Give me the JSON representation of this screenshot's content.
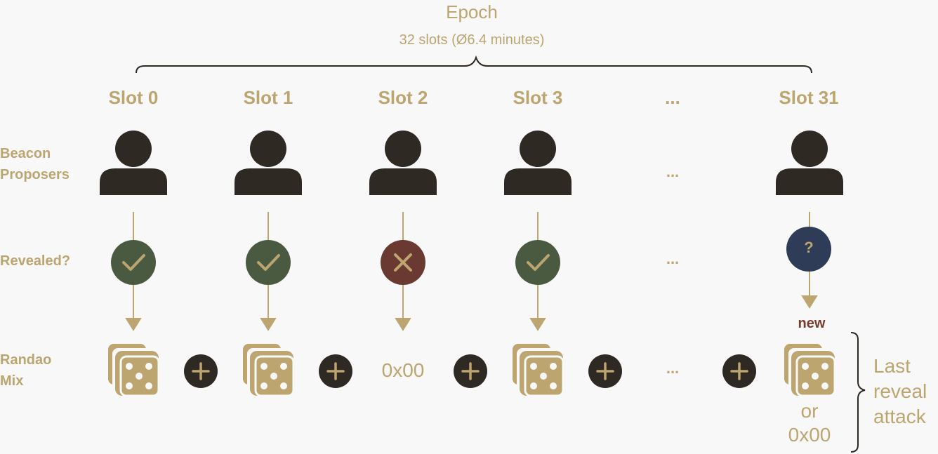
{
  "header": {
    "title": "Epoch",
    "subtitle": "32 slots (Ø6.4 minutes)"
  },
  "slots": [
    "Slot 0",
    "Slot 1",
    "Slot 2",
    "Slot 3",
    "...",
    "Slot 31"
  ],
  "rows": {
    "proposers": "Beacon\nProposers",
    "revealed": "Revealed?",
    "randao": "Randao\nMix"
  },
  "reveal_status": [
    "revealed",
    "revealed",
    "not-revealed",
    "revealed",
    "...",
    "unknown"
  ],
  "unknown_symbol": "?",
  "empty_mix": "0x00",
  "new_label": "new",
  "or_label": "or",
  "last_empty_mix": "0x00",
  "attack_label": "Last\nreveal\nattack",
  "ellipsis": "...",
  "colors": {
    "accent": "#bda570",
    "dark": "#2e2923",
    "revealed_fill": "#4a5a40",
    "missed_fill": "#6a3a32",
    "unknown_fill": "#2f3c58",
    "new_text": "#7a3a2f",
    "background": "#f8f8f8"
  },
  "icons": {
    "proposer": "person-icon",
    "revealed": "check-icon",
    "missed": "cross-icon",
    "unknown": "question-icon",
    "mix": "dice-icon",
    "combine": "plus-icon"
  }
}
